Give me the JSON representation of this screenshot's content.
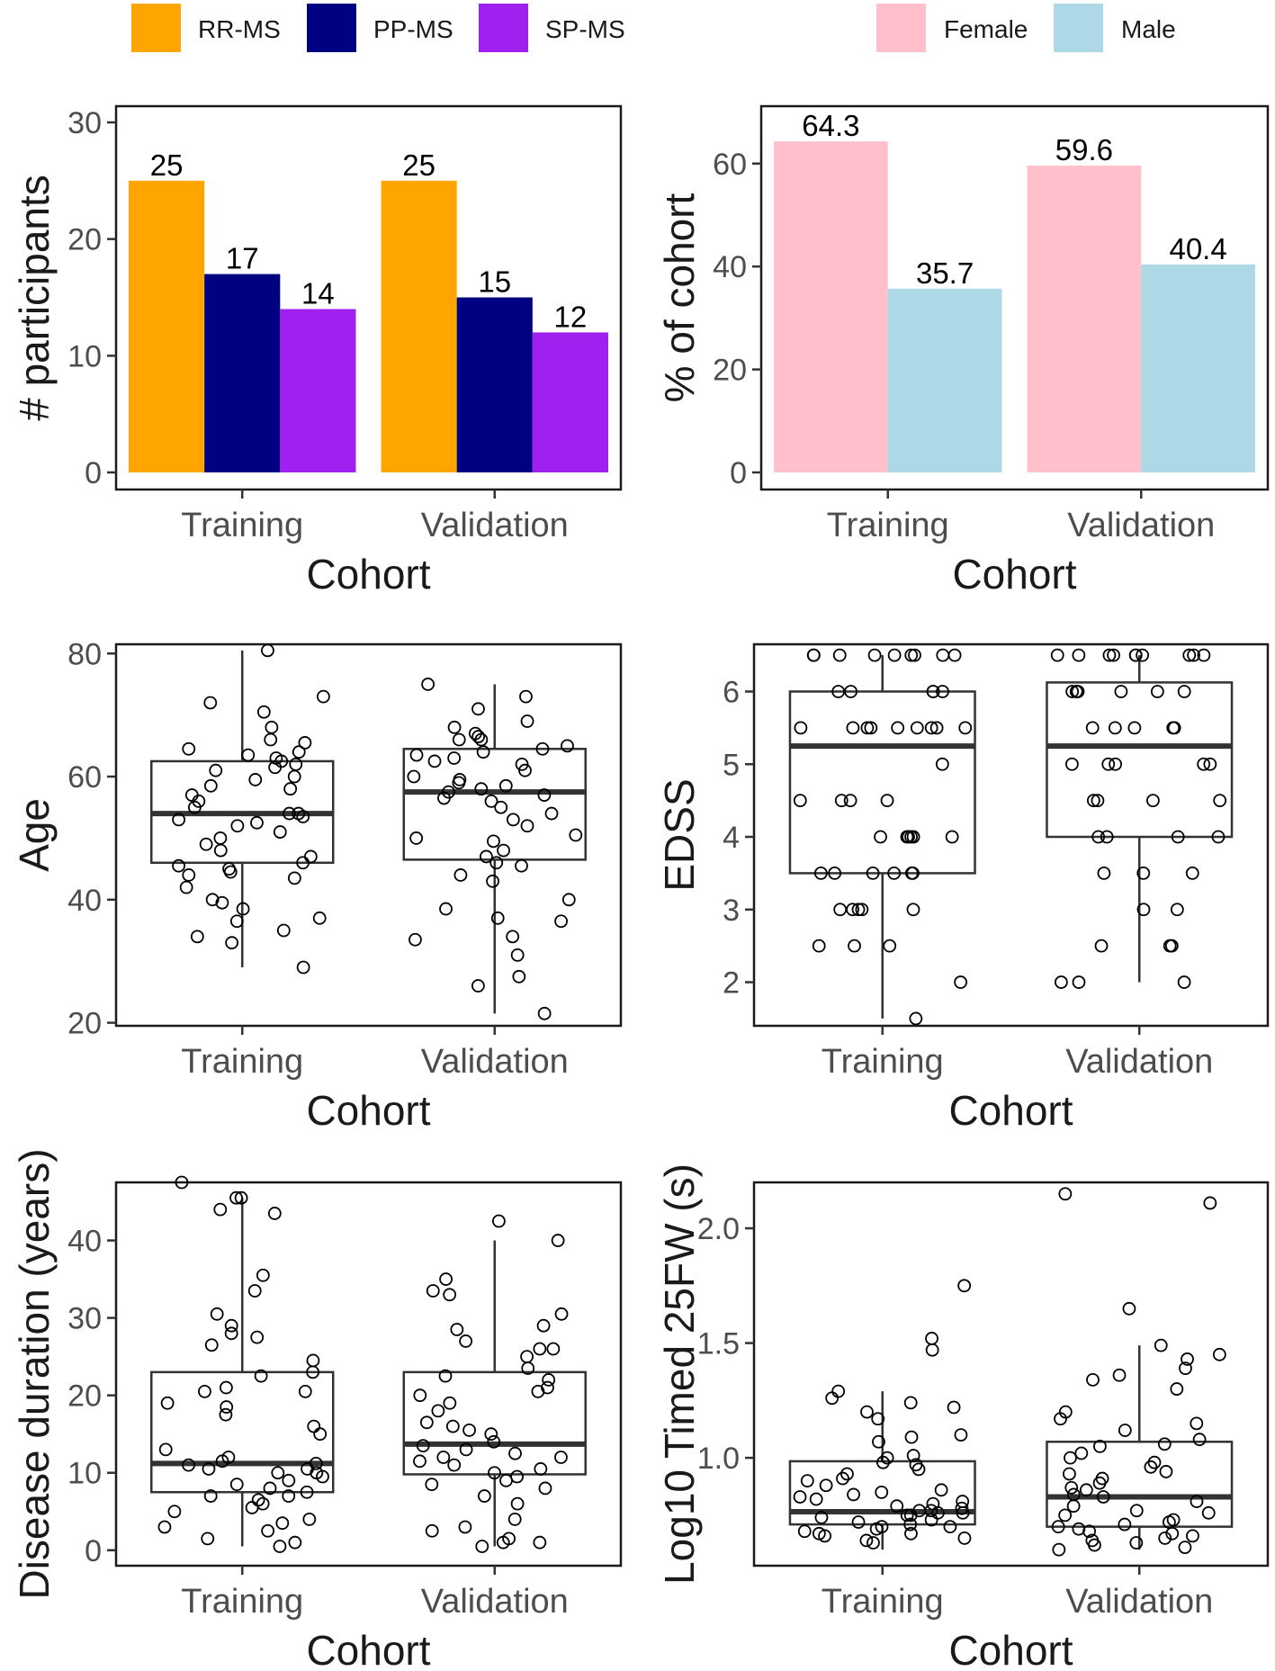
{
  "legend_type": {
    "items": [
      {
        "label": "RR-MS",
        "color": "#FFA500"
      },
      {
        "label": "PP-MS",
        "color": "#000080"
      },
      {
        "label": "SP-MS",
        "color": "#A020F0"
      }
    ]
  },
  "legend_sex": {
    "items": [
      {
        "label": "Female",
        "color": "#FFC0CB"
      },
      {
        "label": "Male",
        "color": "#ADD8E6"
      }
    ]
  },
  "chart_data": [
    {
      "id": "participants",
      "type": "bar",
      "xlabel": "Cohort",
      "ylabel": "# participants",
      "categories": [
        "Training",
        "Validation"
      ],
      "ylim": [
        0,
        30
      ],
      "yticks": [
        0,
        10,
        20,
        30
      ],
      "series": [
        {
          "name": "RR-MS",
          "color": "#FFA500",
          "values": [
            25,
            25
          ]
        },
        {
          "name": "PP-MS",
          "color": "#000080",
          "values": [
            17,
            15
          ]
        },
        {
          "name": "SP-MS",
          "color": "#A020F0",
          "values": [
            14,
            12
          ]
        }
      ]
    },
    {
      "id": "sex",
      "type": "bar",
      "xlabel": "Cohort",
      "ylabel": "% of cohort",
      "categories": [
        "Training",
        "Validation"
      ],
      "ylim": [
        0,
        68
      ],
      "yticks": [
        0,
        20,
        40,
        60
      ],
      "series": [
        {
          "name": "Female",
          "color": "#FFC0CB",
          "values": [
            64.3,
            59.6
          ]
        },
        {
          "name": "Male",
          "color": "#ADD8E6",
          "values": [
            35.7,
            40.4
          ]
        }
      ]
    },
    {
      "id": "age",
      "type": "box",
      "xlabel": "Cohort",
      "ylabel": "Age",
      "categories": [
        "Training",
        "Validation"
      ],
      "ylim": [
        19.5,
        81.5
      ],
      "yticks": [
        20,
        40,
        60,
        80
      ],
      "boxes": [
        {
          "q1": 46,
          "median": 54,
          "q3": 62.5,
          "whisker_low": 29,
          "whisker_high": 80.5
        },
        {
          "q1": 46.5,
          "median": 57.5,
          "q3": 64.5,
          "whisker_low": 21.5,
          "whisker_high": 75
        }
      ],
      "points": [
        [
          80.5,
          72,
          70.5,
          73,
          68,
          66,
          64.5,
          65.5,
          63,
          62,
          62.5,
          61,
          58,
          57,
          59.5,
          56,
          55,
          54,
          53.5,
          54,
          53,
          52,
          51,
          50,
          49,
          48,
          47,
          46,
          45,
          44.5,
          43.5,
          44,
          42,
          40,
          39.5,
          38.5,
          37,
          36.5,
          35,
          34,
          33,
          29,
          60,
          58.5,
          63.5,
          64,
          61.5,
          45.5,
          52.5
        ],
        [
          75,
          73,
          71,
          69,
          68,
          67,
          66.5,
          66,
          65,
          64,
          63.5,
          63,
          62.5,
          62,
          60,
          59.5,
          59,
          58,
          57.5,
          57,
          56,
          55,
          54,
          53,
          52,
          50,
          48,
          47,
          46,
          45.5,
          44,
          43,
          40,
          38.5,
          37,
          36.5,
          34,
          33.5,
          31,
          27.5,
          26,
          21.5,
          61,
          66,
          64.5,
          50.5,
          49.5,
          56.5,
          58.5
        ]
      ]
    },
    {
      "id": "edss",
      "type": "box",
      "xlabel": "Cohort",
      "ylabel": "EDSS",
      "categories": [
        "Training",
        "Validation"
      ],
      "ylim": [
        1.4,
        6.65
      ],
      "yticks": [
        2,
        3,
        4,
        5,
        6
      ],
      "boxes": [
        {
          "q1": 3.5,
          "median": 5.25,
          "q3": 6.0,
          "whisker_low": 1.5,
          "whisker_high": 6.5
        },
        {
          "q1": 4.0,
          "median": 5.25,
          "q3": 6.125,
          "whisker_low": 2.0,
          "whisker_high": 6.5
        }
      ],
      "points": [
        [
          6.5,
          6.5,
          6.5,
          6.5,
          6.5,
          6.5,
          6.5,
          6.5,
          6.5,
          6,
          6,
          6,
          6,
          6,
          5.5,
          5.5,
          5.5,
          5.5,
          5.5,
          5.5,
          5.5,
          5.5,
          5.5,
          5,
          4.5,
          4.5,
          4.5,
          4.5,
          4,
          4,
          4,
          4,
          4,
          4,
          3.5,
          3.5,
          3.5,
          3.5,
          3.5,
          3.5,
          3,
          3,
          3,
          3,
          3,
          2.5,
          2.5,
          2.5,
          2,
          1.5
        ],
        [
          6.5,
          6.5,
          6.5,
          6.5,
          6.5,
          6.5,
          6.5,
          6.5,
          6.5,
          6.5,
          6,
          6,
          6,
          6,
          6,
          6,
          6,
          5.5,
          5.5,
          5.5,
          5.5,
          5.5,
          5,
          5,
          5,
          5,
          5,
          4.5,
          4.5,
          4.5,
          4.5,
          4,
          4,
          4,
          4,
          3.5,
          3.5,
          3.5,
          3,
          3,
          2.5,
          2.5,
          2.5,
          2,
          2,
          2
        ]
      ]
    },
    {
      "id": "duration",
      "type": "box",
      "xlabel": "Cohort",
      "ylabel": "Disease duration (years)",
      "categories": [
        "Training",
        "Validation"
      ],
      "ylim": [
        -2,
        47.5
      ],
      "yticks": [
        0,
        10,
        20,
        30,
        40
      ],
      "boxes": [
        {
          "q1": 7.5,
          "median": 11.2,
          "q3": 23,
          "whisker_low": 0.5,
          "whisker_high": 45.5
        },
        {
          "q1": 9.8,
          "median": 13.7,
          "q3": 23,
          "whisker_low": 0.5,
          "whisker_high": 40
        }
      ],
      "points": [
        [
          47.5,
          45.5,
          45.5,
          44,
          43.5,
          35.5,
          33.5,
          30.5,
          29,
          28,
          27.5,
          26.5,
          24.5,
          23,
          22.5,
          21,
          20.5,
          20.5,
          19,
          18.5,
          17.5,
          16,
          15,
          13,
          12,
          11.5,
          11,
          10.5,
          10.5,
          10,
          10,
          9.5,
          9,
          8.5,
          8,
          7.5,
          7,
          7,
          6.5,
          6,
          5.5,
          5,
          4,
          3.5,
          3,
          2.5,
          1.5,
          1,
          0.5,
          11.2
        ],
        [
          42.5,
          40,
          35,
          33.5,
          33,
          30.5,
          29,
          28.5,
          27,
          26,
          26,
          25,
          23.5,
          22.5,
          22,
          21,
          20.5,
          19,
          18,
          16.5,
          16,
          15.5,
          15,
          14,
          13.5,
          13,
          12.5,
          12,
          12,
          11.5,
          11,
          10.5,
          10,
          9.5,
          9,
          8.5,
          8,
          7,
          6,
          4,
          3,
          2.5,
          1.5,
          1,
          1,
          0.5,
          20
        ]
      ]
    },
    {
      "id": "t25fw",
      "type": "box",
      "xlabel": "Cohort",
      "ylabel": "Log10 Timed 25FW (s)",
      "categories": [
        "Training",
        "Validation"
      ],
      "ylim": [
        0.53,
        2.2
      ],
      "yticks": [
        1.0,
        1.5,
        2.0
      ],
      "ytick_labels": [
        "1.0",
        "1.5",
        "2.0"
      ],
      "boxes": [
        {
          "q1": 0.71,
          "median": 0.765,
          "q3": 0.985,
          "whisker_low": 0.6,
          "whisker_high": 1.29
        },
        {
          "q1": 0.7,
          "median": 0.83,
          "q3": 1.07,
          "whisker_low": 0.6,
          "whisker_high": 1.49
        }
      ],
      "points": [
        [
          1.75,
          1.52,
          1.47,
          1.29,
          1.26,
          1.24,
          1.22,
          1.2,
          1.17,
          1.1,
          1.09,
          1.07,
          1.01,
          1.0,
          0.98,
          0.97,
          0.95,
          0.93,
          0.91,
          0.9,
          0.88,
          0.86,
          0.85,
          0.84,
          0.83,
          0.82,
          0.81,
          0.8,
          0.79,
          0.78,
          0.77,
          0.77,
          0.76,
          0.76,
          0.75,
          0.75,
          0.74,
          0.73,
          0.72,
          0.71,
          0.7,
          0.7,
          0.69,
          0.68,
          0.67,
          0.67,
          0.66,
          0.65,
          0.64,
          0.63
        ],
        [
          2.15,
          2.11,
          1.65,
          1.49,
          1.45,
          1.43,
          1.39,
          1.36,
          1.34,
          1.3,
          1.2,
          1.17,
          1.15,
          1.12,
          1.08,
          1.06,
          1.05,
          1.02,
          1.0,
          0.98,
          0.96,
          0.94,
          0.93,
          0.91,
          0.89,
          0.87,
          0.86,
          0.84,
          0.83,
          0.81,
          0.79,
          0.77,
          0.76,
          0.75,
          0.73,
          0.72,
          0.71,
          0.7,
          0.69,
          0.68,
          0.67,
          0.66,
          0.65,
          0.64,
          0.63,
          0.62,
          0.61,
          0.6
        ]
      ]
    }
  ]
}
